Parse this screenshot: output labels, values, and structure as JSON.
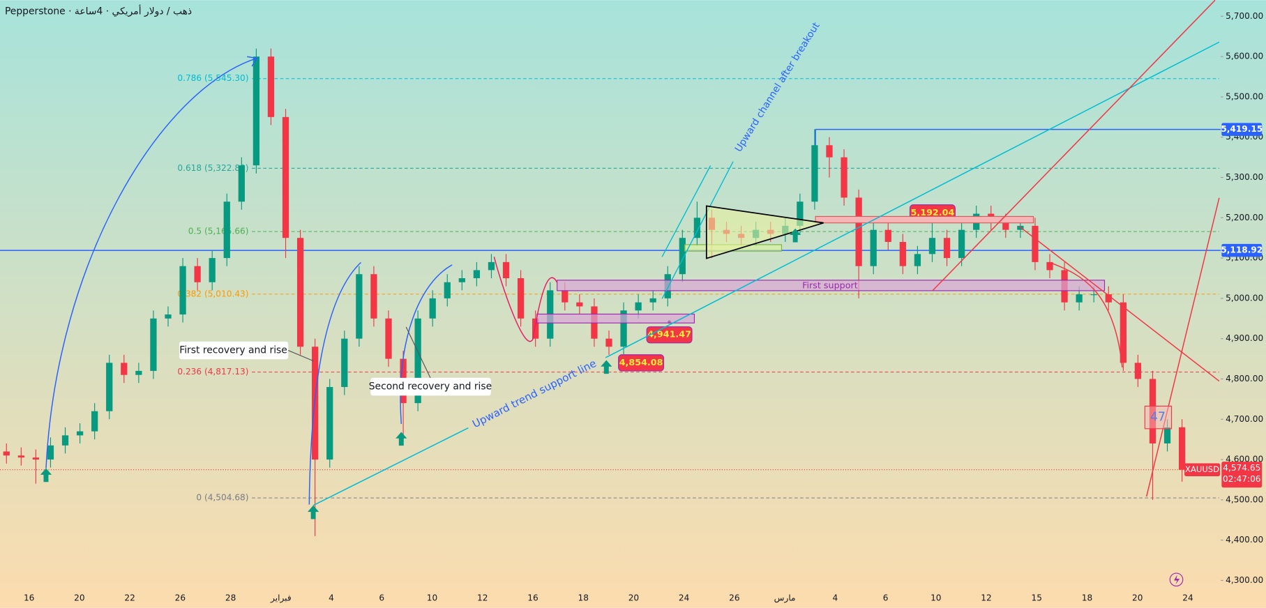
{
  "chart_data": {
    "type": "candlestick",
    "header": "Pepperstone · ذهب / دولار أمريكي · 4ساعة",
    "symbol": "XAUUSD",
    "up_color": "#089981",
    "down_color": "#f23645",
    "ylim": [
      4300,
      5700
    ],
    "yticks": [
      {
        "value": 4300,
        "label": "4,300.00"
      },
      {
        "value": 4400,
        "label": "4,400.00"
      },
      {
        "value": 4500,
        "label": "4,500.00"
      },
      {
        "value": 4600,
        "label": "4,600.00"
      },
      {
        "value": 4700,
        "label": "4,700.00"
      },
      {
        "value": 4800,
        "label": "4,800.00"
      },
      {
        "value": 4900,
        "label": "4,900.00"
      },
      {
        "value": 5000,
        "label": "5,000.00"
      },
      {
        "value": 5100,
        "label": "5,100.00"
      },
      {
        "value": 5200,
        "label": "5,200.00"
      },
      {
        "value": 5300,
        "label": "5,300.00"
      },
      {
        "value": 5400,
        "label": "5,400.00"
      },
      {
        "value": 5500,
        "label": "5,500.00"
      },
      {
        "value": 5600,
        "label": "5,600.00"
      },
      {
        "value": 5700,
        "label": "5,700.00"
      }
    ],
    "x_labels": [
      "16",
      "20",
      "22",
      "26",
      "28",
      "فبراير",
      "4",
      "6",
      "10",
      "12",
      "16",
      "18",
      "20",
      "24",
      "26",
      "مارس",
      "4",
      "6",
      "10",
      "12",
      "15",
      "18",
      "20",
      "24"
    ],
    "open": [
      4620,
      4610,
      4605,
      4600,
      4635,
      4660,
      4670,
      4720,
      4840,
      4810,
      4820,
      4950,
      4960,
      5080,
      5040,
      5100,
      5240,
      5330,
      5600,
      5450,
      5150,
      4880,
      4600,
      4780,
      4900,
      5060,
      4950,
      4850,
      4740,
      4950,
      5000,
      5040,
      5050,
      5070,
      5090,
      5050,
      4950,
      4900,
      5020,
      4990,
      4980,
      4900,
      4880,
      4970,
      4990,
      5000,
      5060,
      5150,
      5200,
      5170,
      5160,
      5150,
      5170,
      5160,
      5180,
      5240,
      5380,
      5350,
      5250,
      5080,
      5170,
      5140,
      5080,
      5110,
      5150,
      5100,
      5170,
      5210,
      5190,
      5170,
      5180,
      5090,
      5070,
      4990,
      5010,
      5010,
      4990,
      4840,
      4800,
      4640,
      4680
    ],
    "high": [
      4640,
      4630,
      4625,
      4655,
      4680,
      4690,
      4740,
      4860,
      4860,
      4840,
      4970,
      4980,
      5100,
      5100,
      5120,
      5260,
      5350,
      5620,
      5620,
      5470,
      5170,
      4900,
      4800,
      4920,
      5080,
      5080,
      4970,
      4870,
      4970,
      5020,
      5060,
      5070,
      5090,
      5110,
      5110,
      5070,
      4970,
      5040,
      5040,
      5010,
      5000,
      4920,
      4990,
      5010,
      5020,
      5080,
      5170,
      5240,
      5220,
      5190,
      5180,
      5190,
      5190,
      5200,
      5260,
      5420,
      5400,
      5370,
      5270,
      5190,
      5190,
      5160,
      5130,
      5190,
      5170,
      5190,
      5230,
      5230,
      5210,
      5200,
      5200,
      5110,
      5090,
      5030,
      5030,
      5030,
      5010,
      4860,
      4820,
      4700,
      4700
    ],
    "low": [
      4590,
      4585,
      4540,
      4580,
      4615,
      4640,
      4650,
      4700,
      4790,
      4790,
      4800,
      4930,
      4940,
      5020,
      5020,
      5080,
      5220,
      5310,
      5430,
      5100,
      4860,
      4410,
      4580,
      4760,
      4880,
      4930,
      4830,
      4650,
      4720,
      4930,
      4980,
      5020,
      5030,
      5050,
      5030,
      4930,
      4880,
      4880,
      4970,
      4960,
      4880,
      4860,
      4860,
      4950,
      4970,
      4980,
      5040,
      5130,
      5100,
      5140,
      5130,
      5130,
      5140,
      5140,
      5160,
      5220,
      5300,
      5230,
      5000,
      5060,
      5120,
      5060,
      5060,
      5090,
      5080,
      5080,
      5150,
      5170,
      5150,
      5150,
      5070,
      5050,
      4970,
      4970,
      4990,
      4970,
      4820,
      4780,
      4500,
      4620,
      4545
    ],
    "close": [
      4610,
      4605,
      4600,
      4635,
      4660,
      4670,
      4720,
      4840,
      4810,
      4820,
      4950,
      4960,
      5080,
      5040,
      5100,
      5240,
      5330,
      5600,
      5450,
      5150,
      4880,
      4600,
      4780,
      4900,
      5060,
      4950,
      4850,
      4740,
      4950,
      5000,
      5040,
      5050,
      5070,
      5090,
      5050,
      4950,
      4900,
      5020,
      4990,
      4980,
      4900,
      4880,
      4970,
      4990,
      5000,
      5060,
      5150,
      5200,
      5170,
      5160,
      5150,
      5170,
      5160,
      5180,
      5240,
      5380,
      5350,
      5250,
      5080,
      5170,
      5140,
      5080,
      5110,
      5150,
      5100,
      5170,
      5210,
      5190,
      5170,
      5180,
      5090,
      5070,
      4990,
      5010,
      5010,
      4990,
      4840,
      4800,
      4640,
      4680,
      4574.65
    ],
    "fib_levels": [
      {
        "value": 5545.3,
        "label": "0.786 (5,545.30)",
        "color": "#00bcd4"
      },
      {
        "value": 5322.88,
        "label": "0.618 (5,322.88)",
        "color": "#26a69a"
      },
      {
        "value": 5165.66,
        "label": "0.5 (5,165.66)",
        "color": "#4caf50"
      },
      {
        "value": 5010.43,
        "label": "0.382 (5,010.43)",
        "color": "#ff9800"
      },
      {
        "value": 4817.13,
        "label": "0.236 (4,817.13)",
        "color": "#f23645"
      },
      {
        "value": 4504.68,
        "label": "0 (4,504.68)",
        "color": "#787b86"
      }
    ],
    "horizontal_lines": [
      {
        "value": 5419.15,
        "label": "5,419.15",
        "color": "#2962ff"
      },
      {
        "value": 5118.92,
        "label": "5,118.92",
        "color": "#2962ff"
      }
    ],
    "last_price": {
      "value": 4574.65,
      "label": "4,574.65",
      "countdown": "02:47:06",
      "color": "#f23645"
    },
    "price_notes": [
      {
        "value": 5192.04,
        "label": "5,192.04"
      },
      {
        "value": 4941.47,
        "label": "4,941.47"
      },
      {
        "value": 4854.08,
        "label": "4,854.08"
      }
    ],
    "annotations": {
      "first_recovery": "First recovery and rise",
      "second_recovery": "Second recovery and rise",
      "trend_support": "Upward trend support line",
      "channel": "Upward channel after breakout",
      "first_support": "First support",
      "box_label": "47"
    }
  }
}
